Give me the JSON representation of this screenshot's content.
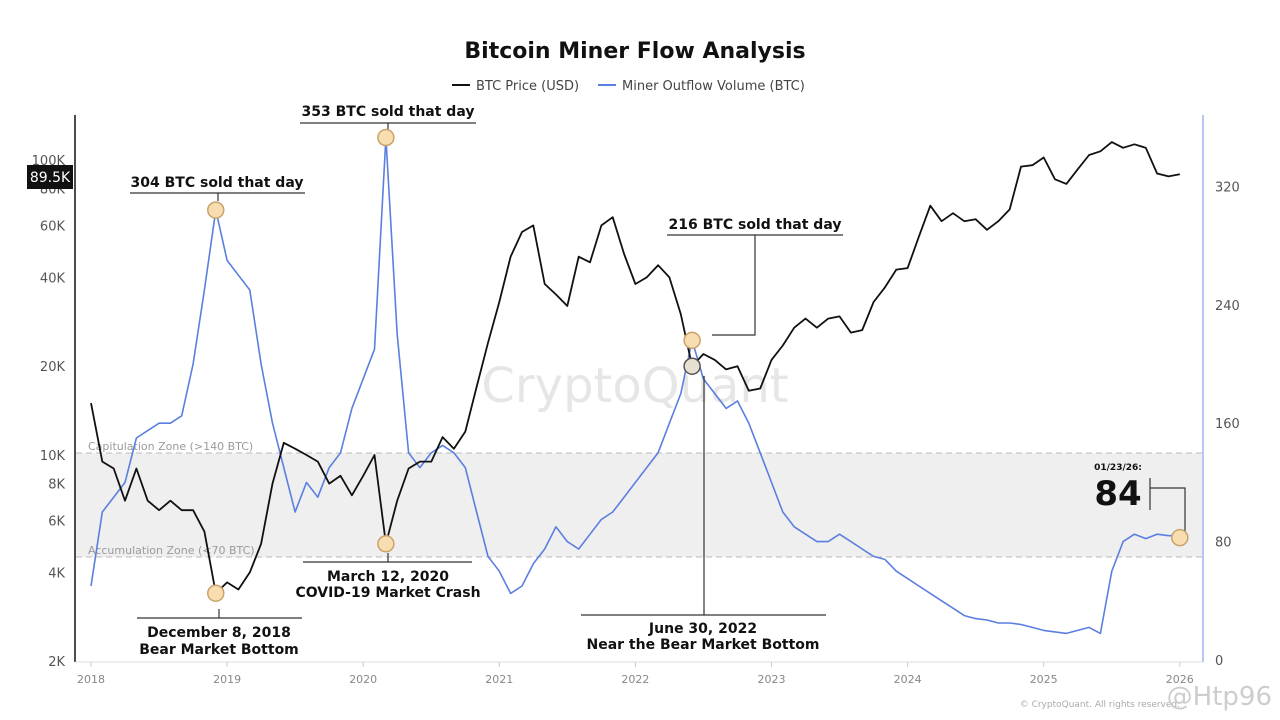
{
  "chart_data": {
    "type": "line",
    "title": "Bitcoin Miner Flow Analysis",
    "legend": {
      "placement": "top-center",
      "entries": [
        "BTC Price (USD)",
        "Miner Outflow Volume (BTC)"
      ]
    },
    "x": [
      "2018-01",
      "2018-02",
      "2018-03",
      "2018-04",
      "2018-05",
      "2018-06",
      "2018-07",
      "2018-08",
      "2018-09",
      "2018-10",
      "2018-11",
      "2018-12",
      "2019-01",
      "2019-02",
      "2019-03",
      "2019-04",
      "2019-05",
      "2019-06",
      "2019-07",
      "2019-08",
      "2019-09",
      "2019-10",
      "2019-11",
      "2019-12",
      "2020-01",
      "2020-02",
      "2020-03",
      "2020-04",
      "2020-05",
      "2020-06",
      "2020-07",
      "2020-08",
      "2020-09",
      "2020-10",
      "2020-11",
      "2020-12",
      "2021-01",
      "2021-02",
      "2021-03",
      "2021-04",
      "2021-05",
      "2021-06",
      "2021-07",
      "2021-08",
      "2021-09",
      "2021-10",
      "2021-11",
      "2021-12",
      "2022-01",
      "2022-02",
      "2022-03",
      "2022-04",
      "2022-05",
      "2022-06",
      "2022-07",
      "2022-08",
      "2022-09",
      "2022-10",
      "2022-11",
      "2022-12",
      "2023-01",
      "2023-02",
      "2023-03",
      "2023-04",
      "2023-05",
      "2023-06",
      "2023-07",
      "2023-08",
      "2023-09",
      "2023-10",
      "2023-11",
      "2023-12",
      "2024-01",
      "2024-02",
      "2024-03",
      "2024-04",
      "2024-05",
      "2024-06",
      "2024-07",
      "2024-08",
      "2024-09",
      "2024-10",
      "2024-11",
      "2024-12",
      "2025-01",
      "2025-02",
      "2025-03",
      "2025-04",
      "2025-05",
      "2025-06",
      "2025-07",
      "2025-08",
      "2025-09",
      "2025-10",
      "2025-11",
      "2025-12",
      "2026-01"
    ],
    "series": [
      {
        "name": "BTC Price (USD)",
        "axis": "left",
        "color": "#111111",
        "values": [
          15000,
          9500,
          9000,
          7000,
          9000,
          7000,
          6500,
          7000,
          6500,
          6500,
          5500,
          3400,
          3700,
          3500,
          4000,
          5000,
          8000,
          11000,
          10500,
          10000,
          9500,
          8000,
          8500,
          7300,
          8500,
          10000,
          5000,
          7000,
          9000,
          9500,
          9500,
          11500,
          10500,
          12000,
          17000,
          24000,
          33000,
          47000,
          57000,
          60000,
          38000,
          35000,
          32000,
          47000,
          45000,
          60000,
          64000,
          48000,
          38000,
          40000,
          44000,
          40000,
          30000,
          20000,
          22000,
          21000,
          19500,
          20000,
          16500,
          16800,
          21000,
          23500,
          27000,
          29000,
          27000,
          29000,
          29500,
          26000,
          26500,
          33000,
          37000,
          42500,
          43000,
          55000,
          70000,
          62000,
          66000,
          62000,
          63000,
          58000,
          62000,
          68000,
          95000,
          96000,
          102000,
          86000,
          83000,
          93000,
          104000,
          107000,
          115000,
          110000,
          113000,
          110000,
          90000,
          88000,
          89500
        ]
      },
      {
        "name": "Miner Outflow Volume (BTC)",
        "axis": "right",
        "color": "#5b7fe0",
        "values": [
          50,
          100,
          110,
          120,
          150,
          155,
          160,
          160,
          165,
          200,
          250,
          304,
          270,
          260,
          250,
          200,
          160,
          130,
          100,
          120,
          110,
          130,
          140,
          170,
          190,
          210,
          353,
          220,
          140,
          130,
          140,
          145,
          140,
          130,
          100,
          70,
          60,
          45,
          50,
          65,
          75,
          90,
          80,
          75,
          85,
          95,
          100,
          110,
          120,
          130,
          140,
          160,
          180,
          216,
          190,
          180,
          170,
          175,
          160,
          140,
          120,
          100,
          90,
          85,
          80,
          80,
          85,
          80,
          75,
          70,
          68,
          60,
          55,
          50,
          45,
          40,
          35,
          30,
          28,
          27,
          25,
          25,
          24,
          22,
          20,
          19,
          18,
          20,
          22,
          18,
          60,
          80,
          85,
          82,
          85,
          84,
          84
        ]
      }
    ],
    "left_axis": {
      "scale": "log",
      "range": [
        2000,
        130000
      ],
      "ticks": [
        "2K",
        "4K",
        "6K",
        "8K",
        "10K",
        "20K",
        "40K",
        "60K",
        "80K",
        "100K"
      ]
    },
    "right_axis": {
      "scale": "linear",
      "range": [
        0,
        360
      ],
      "ticks": [
        "0",
        "80",
        "160",
        "240",
        "320"
      ]
    },
    "x_ticks": [
      "2018",
      "2019",
      "2020",
      "2021",
      "2022",
      "2023",
      "2024",
      "2025",
      "2026"
    ],
    "current_price_tag": "89.5K",
    "zones": {
      "capitulation": {
        "label": "Capitulation Zone (>140 BTC)",
        "value": 140
      },
      "accumulation": {
        "label": "Accumulation Zone (<70 BTC)",
        "value": 70
      }
    },
    "annotations": {
      "a304": {
        "text": "304 BTC sold that day",
        "date": "2018-12",
        "value": 304
      },
      "a353": {
        "text": "353 BTC sold that day",
        "date": "2020-03",
        "value": 353
      },
      "a216": {
        "text": "216 BTC sold that day",
        "date": "2022-06",
        "value": 216
      },
      "dec2018": {
        "line1": "December 8, 2018",
        "line2": "Bear Market Bottom",
        "price": 3400
      },
      "mar2020": {
        "line1": "March 12, 2020",
        "line2": "COVID-19 Market Crash",
        "price": 5000
      },
      "jun2022": {
        "line1": "June 30, 2022",
        "line2": "Near the Bear Market Bottom",
        "price": 20000
      },
      "latest": {
        "date": "01/23/26:",
        "value": "84"
      }
    },
    "watermark": "CryptoQuant",
    "footer": "© CryptoQuant. All rights reserved.",
    "overlay_watermark": "@Htp96"
  }
}
